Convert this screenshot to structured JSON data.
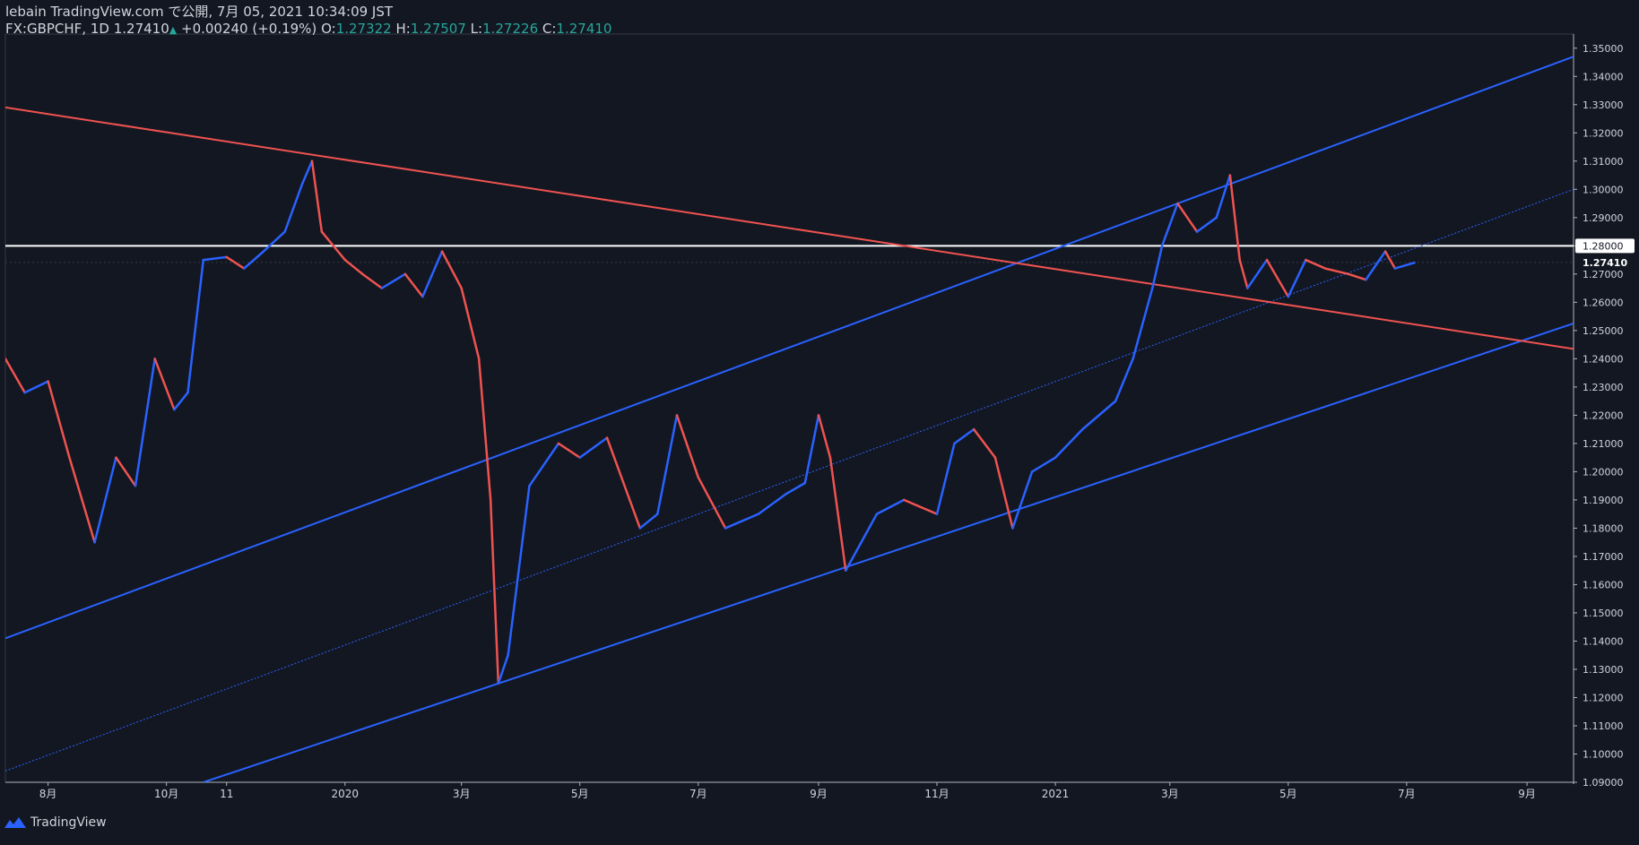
{
  "header": {
    "line1": "lebain TradingView.com で公開, 7月 05, 2021 10:34:09 JST",
    "symbol": "FX:GBPCHF, 1D",
    "last": "1.27410",
    "change": "+0.00240 (+0.19%)",
    "o_label": "O:",
    "o_val": "1.27322",
    "h_label": "H:",
    "h_val": "1.27507",
    "l_label": "L:",
    "l_val": "1.27226",
    "c_label": "C:",
    "c_val": "1.27410"
  },
  "footer": {
    "brand": "TradingView"
  },
  "colors": {
    "background": "#131722",
    "up": "#2962ff",
    "down": "#ef5350",
    "channel": "#2962ff",
    "trendline": "#ef5350",
    "hline": "#ffffff",
    "grid": "#1e222d"
  },
  "chart_data": {
    "type": "line",
    "symbol": "FX:GBPCHF",
    "interval": "1D",
    "ylim": [
      1.09,
      1.355
    ],
    "y_ticks": [
      "1.35000",
      "1.34000",
      "1.33000",
      "1.32000",
      "1.31000",
      "1.30000",
      "1.29000",
      "1.28000",
      "1.27000",
      "1.26000",
      "1.25000",
      "1.24000",
      "1.23000",
      "1.22000",
      "1.21000",
      "1.20000",
      "1.19000",
      "1.18000",
      "1.17000",
      "1.16000",
      "1.15000",
      "1.14000",
      "1.13000",
      "1.12000",
      "1.11000",
      "1.10000",
      "1.09000"
    ],
    "x_ticks": [
      "8月",
      "10月",
      "11",
      "2020",
      "3月",
      "5月",
      "7月",
      "9月",
      "11月",
      "2021",
      "3月",
      "5月",
      "7月",
      "9月"
    ],
    "x_range": [
      "2019-07-10",
      "2021-09-25"
    ],
    "x_tick_dates": [
      "2019-08-01",
      "2019-10-01",
      "2019-11-01",
      "2020-01-01",
      "2020-03-01",
      "2020-05-01",
      "2020-07-01",
      "2020-09-01",
      "2020-11-01",
      "2021-01-01",
      "2021-03-01",
      "2021-05-01",
      "2021-07-01",
      "2021-09-01"
    ],
    "price_series": {
      "name": "",
      "x": [
        "2019-07-10",
        "2019-07-20",
        "2019-08-01",
        "2019-08-12",
        "2019-08-25",
        "2019-09-05",
        "2019-09-15",
        "2019-09-25",
        "2019-10-05",
        "2019-10-12",
        "2019-10-20",
        "2019-11-01",
        "2019-11-10",
        "2019-11-20",
        "2019-12-01",
        "2019-12-10",
        "2019-12-15",
        "2019-12-20",
        "2020-01-01",
        "2020-01-10",
        "2020-01-20",
        "2020-02-01",
        "2020-02-10",
        "2020-02-20",
        "2020-03-01",
        "2020-03-10",
        "2020-03-16",
        "2020-03-20",
        "2020-03-25",
        "2020-04-05",
        "2020-04-20",
        "2020-05-01",
        "2020-05-15",
        "2020-06-01",
        "2020-06-10",
        "2020-06-20",
        "2020-07-01",
        "2020-07-15",
        "2020-08-01",
        "2020-08-15",
        "2020-08-25",
        "2020-09-01",
        "2020-09-07",
        "2020-09-15",
        "2020-10-01",
        "2020-10-15",
        "2020-11-01",
        "2020-11-10",
        "2020-11-20",
        "2020-12-01",
        "2020-12-10",
        "2020-12-20",
        "2021-01-01",
        "2021-01-15",
        "2021-02-01",
        "2021-02-10",
        "2021-02-20",
        "2021-02-25",
        "2021-03-05",
        "2021-03-15",
        "2021-03-25",
        "2021-04-01",
        "2021-04-06",
        "2021-04-10",
        "2021-04-20",
        "2021-05-01",
        "2021-05-10",
        "2021-05-20",
        "2021-06-01",
        "2021-06-10",
        "2021-06-20",
        "2021-06-25",
        "2021-07-05"
      ],
      "y": [
        1.24,
        1.228,
        1.232,
        1.205,
        1.175,
        1.205,
        1.195,
        1.24,
        1.222,
        1.228,
        1.275,
        1.276,
        1.272,
        1.278,
        1.285,
        1.302,
        1.31,
        1.285,
        1.275,
        1.27,
        1.265,
        1.27,
        1.262,
        1.278,
        1.265,
        1.24,
        1.19,
        1.125,
        1.135,
        1.195,
        1.21,
        1.205,
        1.212,
        1.18,
        1.185,
        1.22,
        1.198,
        1.18,
        1.185,
        1.192,
        1.196,
        1.22,
        1.205,
        1.165,
        1.185,
        1.19,
        1.185,
        1.21,
        1.215,
        1.205,
        1.18,
        1.2,
        1.205,
        1.215,
        1.225,
        1.24,
        1.265,
        1.28,
        1.295,
        1.285,
        1.29,
        1.305,
        1.275,
        1.265,
        1.275,
        1.262,
        1.275,
        1.272,
        1.27,
        1.268,
        1.278,
        1.272,
        1.274
      ]
    },
    "trendline_red": {
      "from": [
        "2019-07-10",
        1.329
      ],
      "to": [
        "2021-09-25",
        1.2435
      ]
    },
    "channel_upper": {
      "from": [
        "2019-07-10",
        1.141
      ],
      "to": [
        "2021-09-25",
        1.347
      ]
    },
    "channel_middle": {
      "from": [
        "2019-07-10",
        1.094
      ],
      "to": [
        "2021-09-25",
        1.3
      ]
    },
    "channel_lower": {
      "from": [
        "2019-10-20",
        1.09
      ],
      "to": [
        "2021-09-25",
        1.2525
      ]
    },
    "hline": {
      "y": 1.28,
      "label": "1.28000"
    },
    "last_price": {
      "y": 1.2741,
      "label": "1.27410"
    }
  }
}
